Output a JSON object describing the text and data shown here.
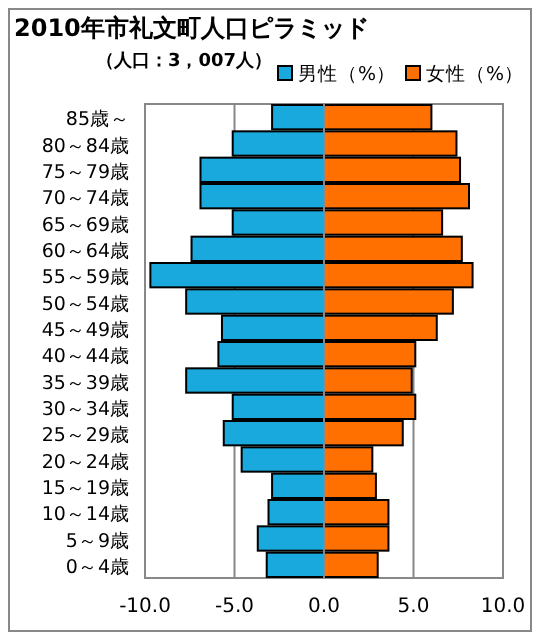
{
  "chart_data": {
    "type": "bar",
    "orientation": "horizontal",
    "stacked": true,
    "title": "2010年市礼文町人口ピラミッド",
    "subtitle": "（人口：3，007人）",
    "categories": [
      "85歳～",
      "80～84歳",
      "75～79歳",
      "70～74歳",
      "65～69歳",
      "60～64歳",
      "55～59歳",
      "50～54歳",
      "45～49歳",
      "40～44歳",
      "35～39歳",
      "30～34歳",
      "25～29歳",
      "20～24歳",
      "15～19歳",
      "10～14歳",
      "5～9歳",
      "0～4歳"
    ],
    "series": [
      {
        "name": "男性（%）",
        "color": "#19a9dc",
        "values": [
          -2.9,
          -5.1,
          -6.9,
          -6.9,
          -5.1,
          -7.4,
          -9.7,
          -7.7,
          -5.7,
          -5.9,
          -7.7,
          -5.1,
          -5.6,
          -4.6,
          -2.9,
          -3.1,
          -3.7,
          -3.2
        ]
      },
      {
        "name": "女性（%）",
        "color": "#ff7000",
        "values": [
          6.0,
          7.4,
          7.6,
          8.1,
          6.6,
          7.7,
          8.3,
          7.2,
          6.3,
          5.1,
          4.9,
          5.1,
          4.4,
          2.7,
          2.9,
          3.6,
          3.6,
          3.0
        ]
      }
    ],
    "xlim": [
      -10,
      10
    ],
    "xticks": [
      {
        "value": -10,
        "label": "-10.0"
      },
      {
        "value": -5,
        "label": "-5.0"
      },
      {
        "value": 0,
        "label": "0.0"
      },
      {
        "value": 5,
        "label": "5.0"
      },
      {
        "value": 10,
        "label": "10.0"
      }
    ],
    "grid": "x",
    "legend": "top right"
  }
}
